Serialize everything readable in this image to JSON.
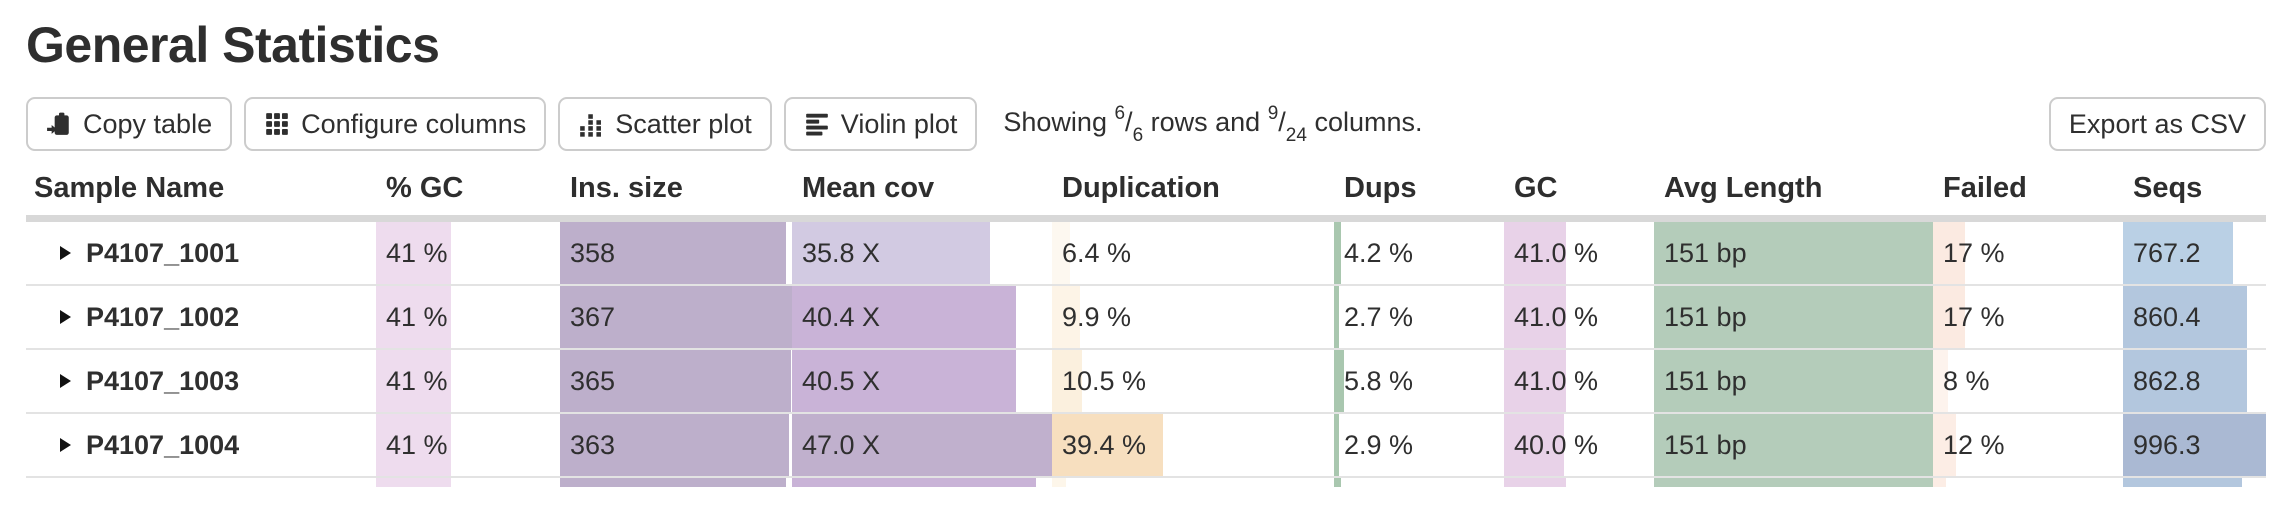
{
  "page": {
    "title": "General Statistics"
  },
  "toolbar": {
    "buttons": [
      {
        "label": "Copy table",
        "icon": "copy-icon"
      },
      {
        "label": "Configure columns",
        "icon": "grid-icon"
      },
      {
        "label": "Scatter plot",
        "icon": "scatter-icon"
      },
      {
        "label": "Violin plot",
        "icon": "violin-icon"
      }
    ],
    "showing": {
      "prefix": "Showing ",
      "rows_shown": "6",
      "rows_total": "6",
      "middle": " rows and ",
      "cols_shown": "9",
      "cols_total": "24",
      "suffix": " columns."
    },
    "export_label": "Export as CSV"
  },
  "table": {
    "columns": [
      {
        "label": "Sample Name"
      },
      {
        "label": "% GC"
      },
      {
        "label": "Ins. size"
      },
      {
        "label": "Mean cov"
      },
      {
        "label": "Duplication"
      },
      {
        "label": "Dups"
      },
      {
        "label": "GC"
      },
      {
        "label": "Avg Length"
      },
      {
        "label": "Failed"
      },
      {
        "label": "Seqs"
      }
    ],
    "rows": [
      {
        "sample": "P4107_1001",
        "cells": [
          {
            "text": "41 %",
            "bar_pct": 41,
            "bar_color": "#eedcee"
          },
          {
            "text": "358",
            "bar_pct": 97.5,
            "bar_color": "#bdafcb"
          },
          {
            "text": "35.8 X",
            "bar_pct": 76,
            "bar_color": "#d2cae2"
          },
          {
            "text": "6.4 %",
            "bar_pct": 6.4,
            "bar_color": "#fdf8f0"
          },
          {
            "text": "4.2 %",
            "bar_pct": 4.2,
            "bar_color": "#a9c7af"
          },
          {
            "text": "41.0 %",
            "bar_pct": 41,
            "bar_color": "#e8d2e8"
          },
          {
            "text": "151 bp",
            "bar_pct": 100,
            "bar_color": "#b4ccba"
          },
          {
            "text": "17 %",
            "bar_pct": 17,
            "bar_color": "#fbeae1"
          },
          {
            "text": "767.2",
            "bar_pct": 77,
            "bar_color": "#bad0e5"
          }
        ]
      },
      {
        "sample": "P4107_1002",
        "cells": [
          {
            "text": "41 %",
            "bar_pct": 41,
            "bar_color": "#eedcee"
          },
          {
            "text": "367",
            "bar_pct": 100,
            "bar_color": "#bdafcb"
          },
          {
            "text": "40.4 X",
            "bar_pct": 86,
            "bar_color": "#c9b3d7"
          },
          {
            "text": "9.9 %",
            "bar_pct": 9.9,
            "bar_color": "#fdf4e7"
          },
          {
            "text": "2.7 %",
            "bar_pct": 2.7,
            "bar_color": "#a9c7af"
          },
          {
            "text": "41.0 %",
            "bar_pct": 41,
            "bar_color": "#e8d2e8"
          },
          {
            "text": "151 bp",
            "bar_pct": 100,
            "bar_color": "#b4ccba"
          },
          {
            "text": "17 %",
            "bar_pct": 17,
            "bar_color": "#fbeae1"
          },
          {
            "text": "860.4",
            "bar_pct": 86.4,
            "bar_color": "#b3c7de"
          }
        ]
      },
      {
        "sample": "P4107_1003",
        "cells": [
          {
            "text": "41 %",
            "bar_pct": 41,
            "bar_color": "#eedcee"
          },
          {
            "text": "365",
            "bar_pct": 99.5,
            "bar_color": "#bdafcb"
          },
          {
            "text": "40.5 X",
            "bar_pct": 86.2,
            "bar_color": "#c9b3d7"
          },
          {
            "text": "10.5 %",
            "bar_pct": 10.5,
            "bar_color": "#fbf0de"
          },
          {
            "text": "5.8 %",
            "bar_pct": 5.8,
            "bar_color": "#a9c7af"
          },
          {
            "text": "41.0 %",
            "bar_pct": 41,
            "bar_color": "#e8d2e8"
          },
          {
            "text": "151 bp",
            "bar_pct": 100,
            "bar_color": "#b4ccba"
          },
          {
            "text": "8 %",
            "bar_pct": 8,
            "bar_color": "#fdf3ed"
          },
          {
            "text": "862.8",
            "bar_pct": 86.6,
            "bar_color": "#b3c7de"
          }
        ]
      },
      {
        "sample": "P4107_1004",
        "cells": [
          {
            "text": "41 %",
            "bar_pct": 41,
            "bar_color": "#eedcee"
          },
          {
            "text": "363",
            "bar_pct": 98.9,
            "bar_color": "#bdafcb"
          },
          {
            "text": "47.0 X",
            "bar_pct": 100,
            "bar_color": "#c0b0cd"
          },
          {
            "text": "39.4 %",
            "bar_pct": 39.4,
            "bar_color": "#f7dfbf"
          },
          {
            "text": "2.9 %",
            "bar_pct": 2.9,
            "bar_color": "#a9c7af"
          },
          {
            "text": "40.0 %",
            "bar_pct": 40,
            "bar_color": "#e8d2e8"
          },
          {
            "text": "151 bp",
            "bar_pct": 100,
            "bar_color": "#b4ccba"
          },
          {
            "text": "12 %",
            "bar_pct": 12,
            "bar_color": "#fcede5"
          },
          {
            "text": "996.3",
            "bar_pct": 100,
            "bar_color": "#aab9d3"
          }
        ]
      }
    ],
    "partial_row_bars": [
      {
        "bar_pct": 41,
        "bar_color": "#eedcee"
      },
      {
        "bar_pct": 97.5,
        "bar_color": "#bdafcb"
      },
      {
        "bar_pct": 94,
        "bar_color": "#c9b3d7"
      },
      {
        "bar_pct": 5,
        "bar_color": "#fdf6ea"
      },
      {
        "bar_pct": 4,
        "bar_color": "#a9c7af"
      },
      {
        "bar_pct": 41,
        "bar_color": "#e8d2e8"
      },
      {
        "bar_pct": 100,
        "bar_color": "#b4ccba"
      },
      {
        "bar_pct": 7,
        "bar_color": "#fcede5"
      },
      {
        "bar_pct": 83,
        "bar_color": "#b3c7de"
      }
    ]
  }
}
